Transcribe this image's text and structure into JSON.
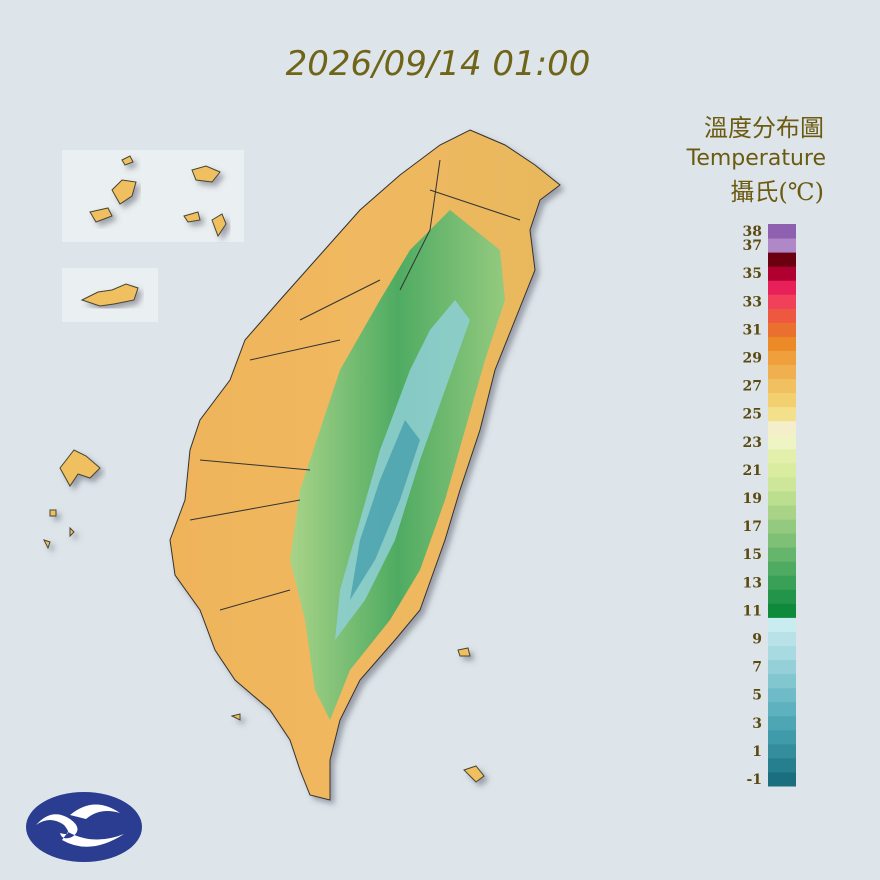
{
  "timestamp": "2026/09/14 01:00",
  "legend": {
    "title_zh": "溫度分布圖",
    "title_en": "Temperature",
    "unit": "攝氏(℃)",
    "range": [
      -1,
      39
    ],
    "ticks": [
      38,
      37,
      35,
      33,
      31,
      29,
      27,
      25,
      23,
      21,
      19,
      17,
      15,
      13,
      11,
      9,
      7,
      5,
      3,
      1,
      -1
    ],
    "colors": [
      "#1a6e7e",
      "#267f8e",
      "#338d9c",
      "#3f9aaa",
      "#4ea6b4",
      "#5eb1be",
      "#6fbcc8",
      "#82c6d0",
      "#95d0d9",
      "#a8dae1",
      "#b8e2e8",
      "#c8ecef",
      "#0f8a3c",
      "#23954a",
      "#38a057",
      "#4fab62",
      "#66b56c",
      "#7dc076",
      "#94ca7f",
      "#a9d488",
      "#bcde8f",
      "#cde697",
      "#d9ec9f",
      "#e3f0ab",
      "#eef4c4",
      "#f4eecb",
      "#f2e08a",
      "#f2d070",
      "#f1c060",
      "#f0b050",
      "#ef9f3c",
      "#ec8a28",
      "#ea7030",
      "#ee5840",
      "#f0405a",
      "#e8205a",
      "#b00030",
      "#6b0010",
      "#b088c8",
      "#9060b0"
    ]
  }
}
